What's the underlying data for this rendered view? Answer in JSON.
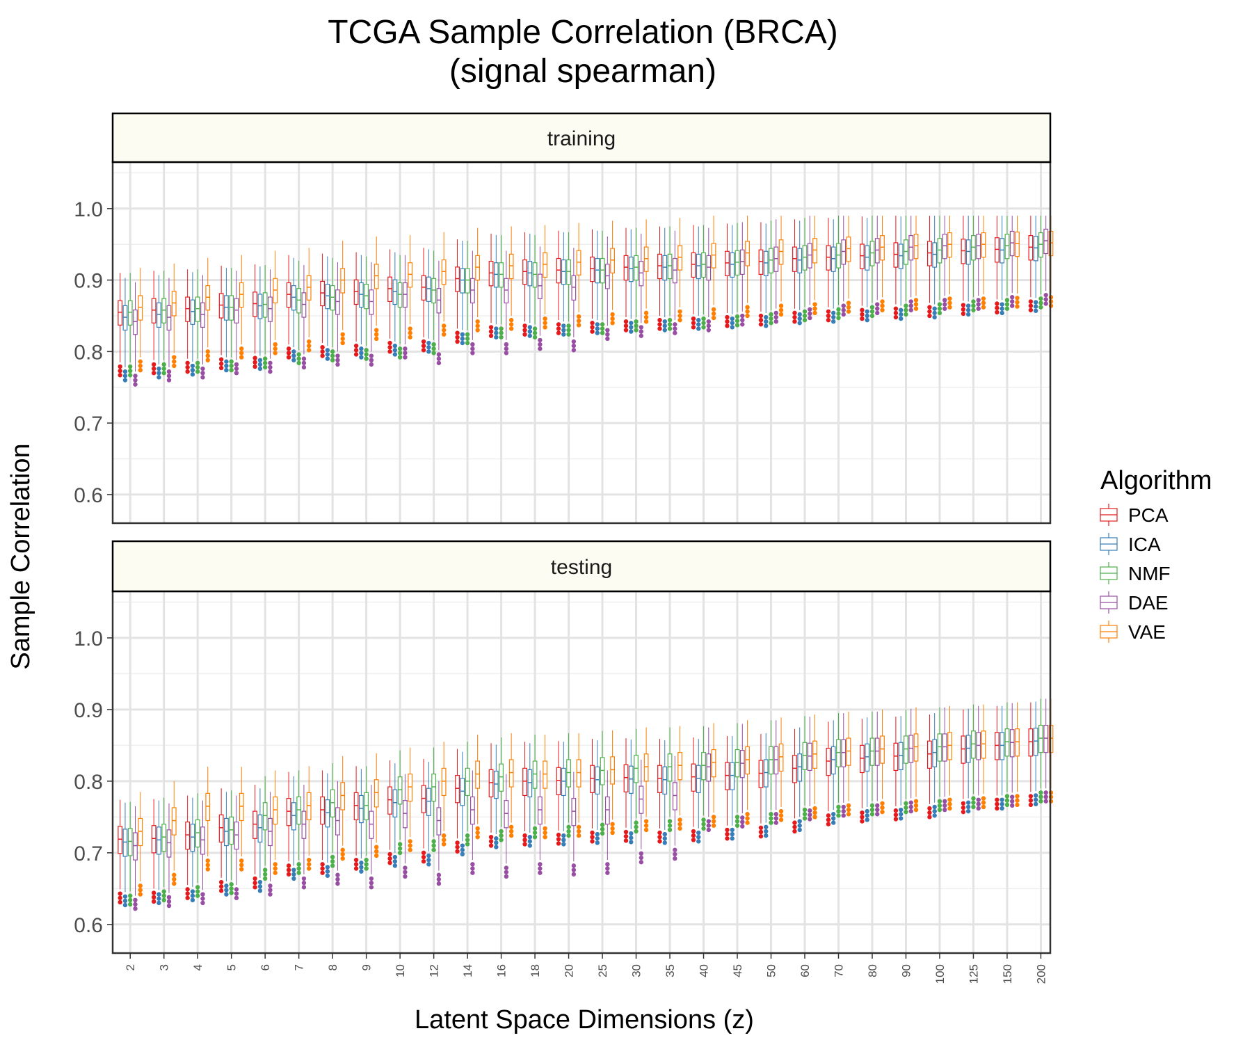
{
  "chart_data": {
    "type": "box",
    "title_line1": "TCGA Sample Correlation (BRCA)",
    "title_line2": "(signal spearman)",
    "xlabel": "Latent Space Dimensions (z)",
    "ylabel": "Sample Correlation",
    "ylim": [
      0.56,
      1.065
    ],
    "y_ticks": [
      "0.6",
      "0.7",
      "0.8",
      "0.9",
      "1.0"
    ],
    "grid": true,
    "legend": {
      "title": "Algorithm",
      "position": "right"
    },
    "categories": [
      "2",
      "3",
      "4",
      "5",
      "6",
      "7",
      "8",
      "9",
      "10",
      "12",
      "14",
      "16",
      "18",
      "20",
      "25",
      "30",
      "35",
      "40",
      "45",
      "50",
      "60",
      "70",
      "80",
      "90",
      "100",
      "125",
      "150",
      "200"
    ],
    "series": [
      {
        "name": "PCA",
        "color": "#e41a1c"
      },
      {
        "name": "ICA",
        "color": "#377eb8"
      },
      {
        "name": "NMF",
        "color": "#4daf4a"
      },
      {
        "name": "DAE",
        "color": "#984ea3"
      },
      {
        "name": "VAE",
        "color": "#ff7f00"
      }
    ],
    "panels": [
      {
        "label": "training",
        "medians": {
          "PCA": [
            0.855,
            0.858,
            0.86,
            0.865,
            0.867,
            0.88,
            0.882,
            0.884,
            0.888,
            0.89,
            0.902,
            0.91,
            0.912,
            0.914,
            0.916,
            0.918,
            0.92,
            0.922,
            0.924,
            0.926,
            0.93,
            0.932,
            0.934,
            0.936,
            0.938,
            0.941,
            0.943,
            0.946
          ],
          "ICA": [
            0.848,
            0.852,
            0.856,
            0.862,
            0.864,
            0.876,
            0.878,
            0.88,
            0.884,
            0.888,
            0.9,
            0.908,
            0.91,
            0.912,
            0.914,
            0.916,
            0.918,
            0.92,
            0.922,
            0.924,
            0.928,
            0.93,
            0.932,
            0.934,
            0.936,
            0.94,
            0.942,
            0.945
          ],
          "NMF": [
            0.855,
            0.858,
            0.86,
            0.862,
            0.866,
            0.872,
            0.876,
            0.878,
            0.88,
            0.886,
            0.9,
            0.908,
            0.908,
            0.912,
            0.914,
            0.918,
            0.92,
            0.922,
            0.925,
            0.928,
            0.932,
            0.935,
            0.938,
            0.94,
            0.942,
            0.946,
            0.948,
            0.95
          ],
          "DAE": [
            0.842,
            0.848,
            0.852,
            0.858,
            0.86,
            0.866,
            0.87,
            0.87,
            0.88,
            0.872,
            0.886,
            0.886,
            0.892,
            0.89,
            0.906,
            0.91,
            0.914,
            0.918,
            0.926,
            0.93,
            0.935,
            0.94,
            0.942,
            0.946,
            0.948,
            0.948,
            0.952,
            0.955
          ],
          "VAE": [
            0.862,
            0.868,
            0.876,
            0.88,
            0.886,
            0.89,
            0.9,
            0.906,
            0.908,
            0.912,
            0.918,
            0.92,
            0.922,
            0.925,
            0.928,
            0.93,
            0.932,
            0.935,
            0.938,
            0.94,
            0.942,
            0.944,
            0.946,
            0.948,
            0.95,
            0.95,
            0.951,
            0.952
          ]
        }
      },
      {
        "label": "testing",
        "medians": {
          "PCA": [
            0.719,
            0.72,
            0.725,
            0.735,
            0.74,
            0.758,
            0.76,
            0.766,
            0.774,
            0.776,
            0.79,
            0.798,
            0.8,
            0.801,
            0.804,
            0.805,
            0.804,
            0.806,
            0.808,
            0.811,
            0.818,
            0.828,
            0.832,
            0.835,
            0.838,
            0.845,
            0.85,
            0.855
          ],
          "ICA": [
            0.715,
            0.718,
            0.722,
            0.73,
            0.735,
            0.752,
            0.756,
            0.762,
            0.77,
            0.772,
            0.786,
            0.796,
            0.798,
            0.8,
            0.802,
            0.803,
            0.802,
            0.804,
            0.808,
            0.812,
            0.82,
            0.83,
            0.834,
            0.836,
            0.84,
            0.846,
            0.85,
            0.856
          ],
          "NMF": [
            0.716,
            0.722,
            0.728,
            0.732,
            0.752,
            0.76,
            0.77,
            0.766,
            0.788,
            0.792,
            0.8,
            0.806,
            0.81,
            0.812,
            0.815,
            0.818,
            0.82,
            0.822,
            0.826,
            0.83,
            0.836,
            0.84,
            0.842,
            0.845,
            0.848,
            0.852,
            0.855,
            0.86
          ],
          "DAE": [
            0.71,
            0.714,
            0.718,
            0.725,
            0.73,
            0.74,
            0.745,
            0.74,
            0.755,
            0.745,
            0.76,
            0.755,
            0.76,
            0.758,
            0.76,
            0.775,
            0.78,
            0.82,
            0.825,
            0.83,
            0.835,
            0.84,
            0.842,
            0.846,
            0.848,
            0.85,
            0.854,
            0.86
          ],
          "VAE": [
            0.73,
            0.745,
            0.765,
            0.765,
            0.76,
            0.766,
            0.78,
            0.784,
            0.792,
            0.8,
            0.81,
            0.812,
            0.81,
            0.812,
            0.816,
            0.82,
            0.822,
            0.826,
            0.83,
            0.834,
            0.838,
            0.842,
            0.845,
            0.848,
            0.85,
            0.852,
            0.855,
            0.86
          ]
        }
      }
    ]
  }
}
